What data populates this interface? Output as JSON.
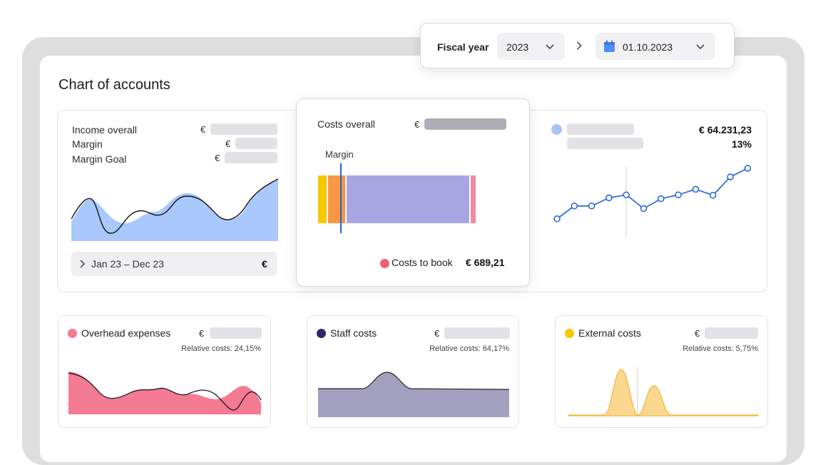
{
  "page_title": "Chart of accounts",
  "fiscal": {
    "label": "Fiscal year",
    "year": "2023",
    "date": "01.10.2023",
    "year_icon": "chevron-down-icon",
    "date_icon": "calendar-icon"
  },
  "income_card": {
    "rows": [
      {
        "label": "Income overall",
        "currency": "€"
      },
      {
        "label": "Margin",
        "currency": "€"
      },
      {
        "label": "Margin Goal",
        "currency": "€"
      }
    ],
    "period": "Jan 23 – Dec 23",
    "period_currency": "€",
    "area_color": "#a9c8fb"
  },
  "costs_card": {
    "title": "Costs overall",
    "currency": "€",
    "margin_label": "Margin",
    "legend_label": "Costs to book",
    "legend_value": "€ 689,21",
    "legend_color": "#f0607a",
    "segments": [
      {
        "color": "#f5c800",
        "share": 0.044
      },
      {
        "color": "#f99642",
        "share": 0.094
      },
      {
        "color": "#a9a5e2",
        "share": 0.652
      },
      {
        "color": "#f38a9a",
        "share": 0.026
      }
    ],
    "margin_position": 0.118
  },
  "trend_card": {
    "amount": "€ 64.231,23",
    "percent": "13%",
    "dot_color": "#a9c4f7",
    "line_color": "#1f63d6",
    "points": [
      0.12,
      0.42,
      0.42,
      0.61,
      0.68,
      0.36,
      0.59,
      0.68,
      0.81,
      0.67,
      1.1,
      1.3
    ]
  },
  "bottom_cards": [
    {
      "title": "Overhead expenses",
      "currency": "€",
      "relative": "Relative costs: 24,15%",
      "color": "#f57a94"
    },
    {
      "title": "Staff costs",
      "currency": "€",
      "relative": "Relative costs: 64,17%",
      "color": "#2b2770"
    },
    {
      "title": "External costs",
      "currency": "€",
      "relative": "Relative costs: 5,75%",
      "color": "#f5c800"
    }
  ]
}
